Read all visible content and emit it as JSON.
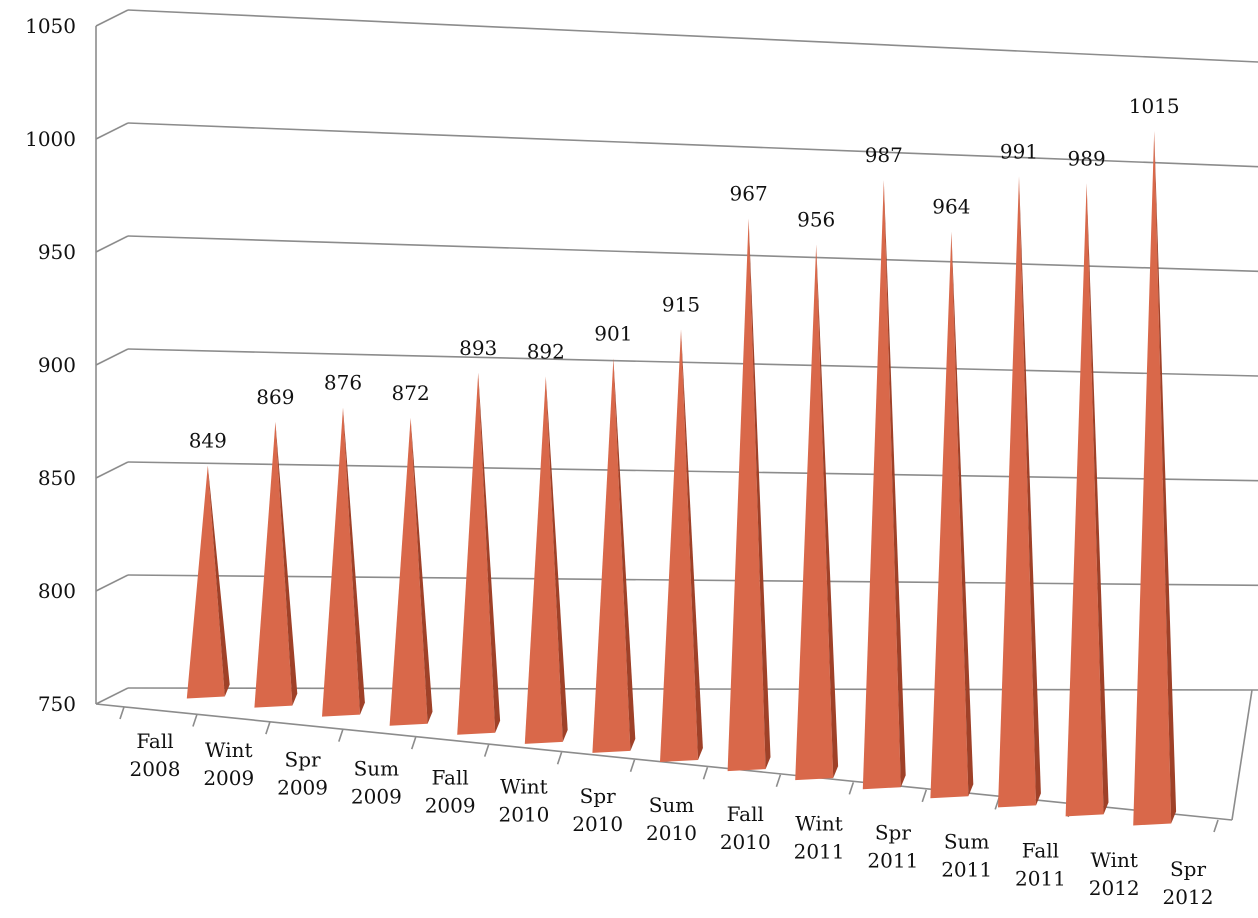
{
  "chart_data": {
    "type": "bar",
    "style": "3d-pyramid",
    "categories": [
      [
        "Fall",
        "2008"
      ],
      [
        "Wint",
        "2009"
      ],
      [
        "Spr",
        "2009"
      ],
      [
        "Sum",
        "2009"
      ],
      [
        "Fall",
        "2009"
      ],
      [
        "Wint",
        "2010"
      ],
      [
        "Spr",
        "2010"
      ],
      [
        "Sum",
        "2010"
      ],
      [
        "Fall",
        "2010"
      ],
      [
        "Wint",
        "2011"
      ],
      [
        "Spr",
        "2011"
      ],
      [
        "Sum",
        "2011"
      ],
      [
        "Fall",
        "2011"
      ],
      [
        "Wint",
        "2012"
      ],
      [
        "Spr",
        "2012"
      ]
    ],
    "values": [
      849,
      869,
      876,
      872,
      893,
      892,
      901,
      915,
      967,
      956,
      987,
      964,
      991,
      989,
      1015
    ],
    "data_labels": [
      "849",
      "869",
      "876",
      "872",
      "893",
      "892",
      "901",
      "915",
      "967",
      "956",
      "987",
      "964",
      "991",
      "989",
      "1015"
    ],
    "yticks": [
      "750",
      "800",
      "850",
      "900",
      "950",
      "1000",
      "1050"
    ],
    "ylim": [
      750,
      1050
    ],
    "title": "",
    "xlabel": "",
    "ylabel": "",
    "grid": true,
    "legend": "none",
    "colors": {
      "front": "#d9684a",
      "side": "#9f4128",
      "grid": "#8c8c8c"
    }
  }
}
